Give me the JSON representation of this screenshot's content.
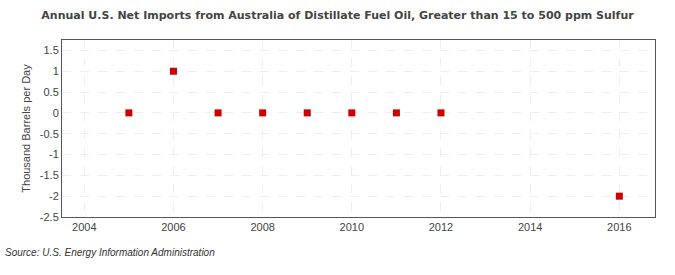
{
  "chart_data": {
    "type": "scatter",
    "title": "Annual U.S. Net Imports from Australia of Distillate Fuel Oil, Greater than 15 to 500 ppm Sulfur",
    "ylabel": "Thousand Barrels per Day",
    "annotations": [
      "Source: U.S. Energy Information Administration"
    ],
    "x": [
      2005,
      2006,
      2007,
      2008,
      2009,
      2010,
      2011,
      2012,
      2016
    ],
    "values": [
      0.0,
      1.0,
      0.0,
      0.0,
      0.0,
      0.0,
      0.0,
      0.0,
      -2.0
    ],
    "color": "#cc0000",
    "marker": "square",
    "xlim": [
      2003.5,
      2016.8
    ],
    "ylim": [
      -2.5,
      1.75
    ],
    "xticks": [
      2004,
      2006,
      2008,
      2010,
      2012,
      2014,
      2016
    ],
    "yticks": [
      -2.5,
      -2,
      -1.5,
      -1,
      -0.5,
      0,
      0.5,
      1,
      1.5
    ],
    "grid": true
  }
}
